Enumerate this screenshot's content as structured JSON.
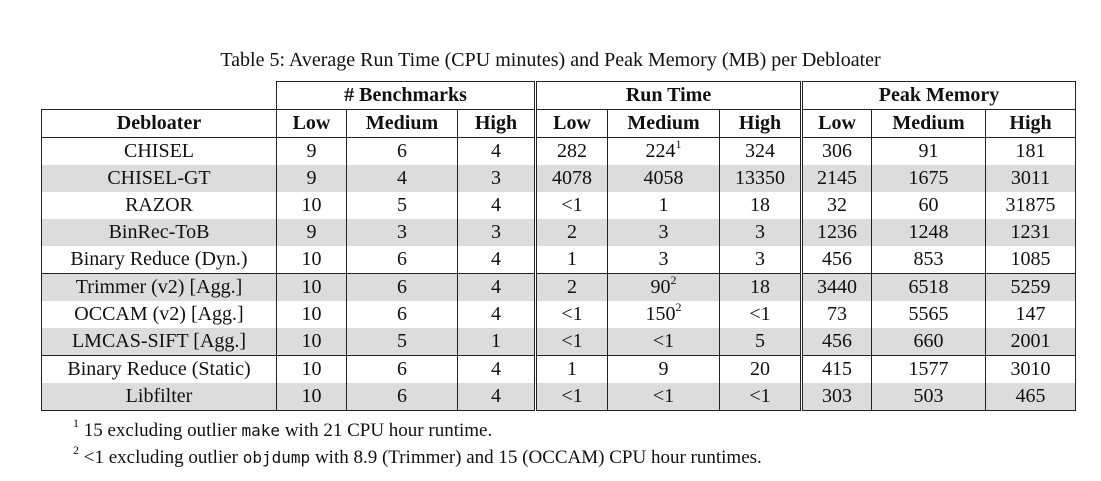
{
  "caption": "Table 5: Average Run Time (CPU minutes) and Peak Memory (MB) per Debloater",
  "groups": {
    "benchmarks": "# Benchmarks",
    "runtime": "Run Time",
    "memory": "Peak Memory"
  },
  "headers": [
    "Debloater",
    "Low",
    "Medium",
    "High",
    "Low",
    "Medium",
    "High",
    "Low",
    "Medium",
    "High"
  ],
  "rows": [
    {
      "name": "CHISEL",
      "b": [
        "9",
        "6",
        "4"
      ],
      "r": [
        "282",
        "224",
        "324"
      ],
      "rsup": [
        "",
        "1",
        ""
      ],
      "m": [
        "306",
        "91",
        "181"
      ]
    },
    {
      "name": "CHISEL-GT",
      "b": [
        "9",
        "4",
        "3"
      ],
      "r": [
        "4078",
        "4058",
        "13350"
      ],
      "rsup": [
        "",
        "",
        ""
      ],
      "m": [
        "2145",
        "1675",
        "3011"
      ]
    },
    {
      "name": "RAZOR",
      "b": [
        "10",
        "5",
        "4"
      ],
      "r": [
        "<1",
        "1",
        "18"
      ],
      "rsup": [
        "",
        "",
        ""
      ],
      "m": [
        "32",
        "60",
        "31875"
      ]
    },
    {
      "name": "BinRec-ToB",
      "b": [
        "9",
        "3",
        "3"
      ],
      "r": [
        "2",
        "3",
        "3"
      ],
      "rsup": [
        "",
        "",
        ""
      ],
      "m": [
        "1236",
        "1248",
        "1231"
      ]
    },
    {
      "name": "Binary Reduce (Dyn.)",
      "b": [
        "10",
        "6",
        "4"
      ],
      "r": [
        "1",
        "3",
        "3"
      ],
      "rsup": [
        "",
        "",
        ""
      ],
      "m": [
        "456",
        "853",
        "1085"
      ]
    },
    {
      "name": "Trimmer (v2) [Agg.]",
      "b": [
        "10",
        "6",
        "4"
      ],
      "r": [
        "2",
        "90",
        "18"
      ],
      "rsup": [
        "",
        "2",
        ""
      ],
      "m": [
        "3440",
        "6518",
        "5259"
      ]
    },
    {
      "name": "OCCAM (v2) [Agg.]",
      "b": [
        "10",
        "6",
        "4"
      ],
      "r": [
        "<1",
        "150",
        "<1"
      ],
      "rsup": [
        "",
        "2",
        ""
      ],
      "m": [
        "73",
        "5565",
        "147"
      ]
    },
    {
      "name": "LMCAS-SIFT [Agg.]",
      "b": [
        "10",
        "5",
        "1"
      ],
      "r": [
        "<1",
        "<1",
        "5"
      ],
      "rsup": [
        "",
        "",
        ""
      ],
      "m": [
        "456",
        "660",
        "2001"
      ]
    },
    {
      "name": "Binary Reduce (Static)",
      "b": [
        "10",
        "6",
        "4"
      ],
      "r": [
        "1",
        "9",
        "20"
      ],
      "rsup": [
        "",
        "",
        ""
      ],
      "m": [
        "415",
        "1577",
        "3010"
      ]
    },
    {
      "name": "Libfilter",
      "b": [
        "10",
        "6",
        "4"
      ],
      "r": [
        "<1",
        "<1",
        "<1"
      ],
      "rsup": [
        "",
        "",
        ""
      ],
      "m": [
        "303",
        "503",
        "465"
      ]
    }
  ],
  "footnotes": [
    {
      "mark": "1",
      "before": "15 excluding outlier ",
      "code": "make",
      "after": " with 21 CPU hour runtime."
    },
    {
      "mark": "2",
      "before": "<1 excluding outlier ",
      "code": "objdump",
      "after": " with 8.9 (Trimmer) and 15 (OCCAM) CPU hour runtimes."
    }
  ]
}
